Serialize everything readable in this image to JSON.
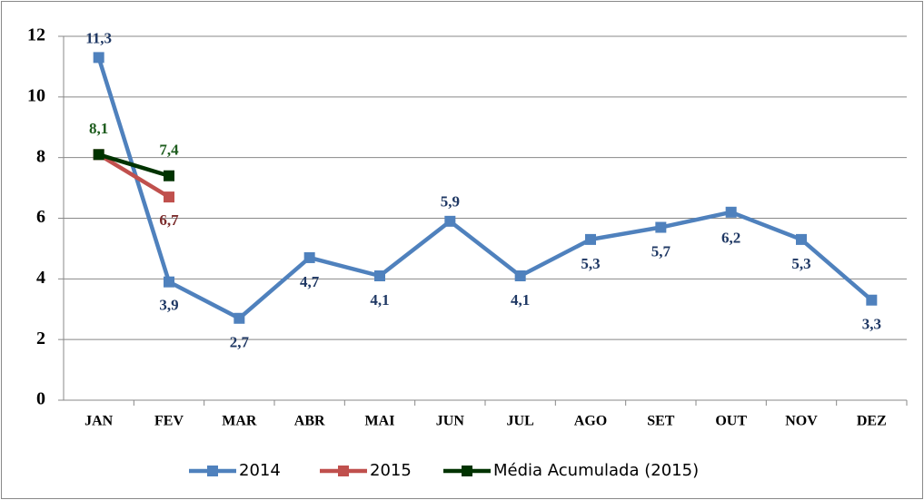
{
  "chart_data": {
    "type": "line",
    "categories": [
      "JAN",
      "FEV",
      "MAR",
      "ABR",
      "MAI",
      "JUN",
      "JUL",
      "AGO",
      "SET",
      "OUT",
      "NOV",
      "DEZ"
    ],
    "series": [
      {
        "name": "2014",
        "color": "#4f81bd",
        "label_color": "#1f3864",
        "values": [
          11.3,
          3.9,
          2.7,
          4.7,
          4.1,
          5.9,
          4.1,
          5.3,
          5.7,
          6.2,
          5.3,
          3.3
        ],
        "value_labels": [
          "11,3",
          "3,9",
          "2,7",
          "4,7",
          "4,1",
          "5,9",
          "4,1",
          "5,3",
          "5,7",
          "6,2",
          "5,3",
          "3,3"
        ]
      },
      {
        "name": "2015",
        "color": "#c0504d",
        "label_color": "#7b2c2c",
        "values": [
          8.1,
          6.7,
          null,
          null,
          null,
          null,
          null,
          null,
          null,
          null,
          null,
          null
        ],
        "value_labels": [
          null,
          "6,7",
          null,
          null,
          null,
          null,
          null,
          null,
          null,
          null,
          null,
          null
        ]
      },
      {
        "name": "Média Acumulada (2015)",
        "color": "#003300",
        "label_color": "#1d5c1d",
        "values": [
          8.1,
          7.4,
          null,
          null,
          null,
          null,
          null,
          null,
          null,
          null,
          null,
          null
        ],
        "value_labels": [
          "8,1",
          "7,4",
          null,
          null,
          null,
          null,
          null,
          null,
          null,
          null,
          null,
          null
        ]
      }
    ],
    "ylim": [
      0,
      12
    ],
    "yticks": [
      0,
      2,
      4,
      6,
      8,
      10,
      12
    ],
    "grid": true,
    "legend": "bottom"
  }
}
